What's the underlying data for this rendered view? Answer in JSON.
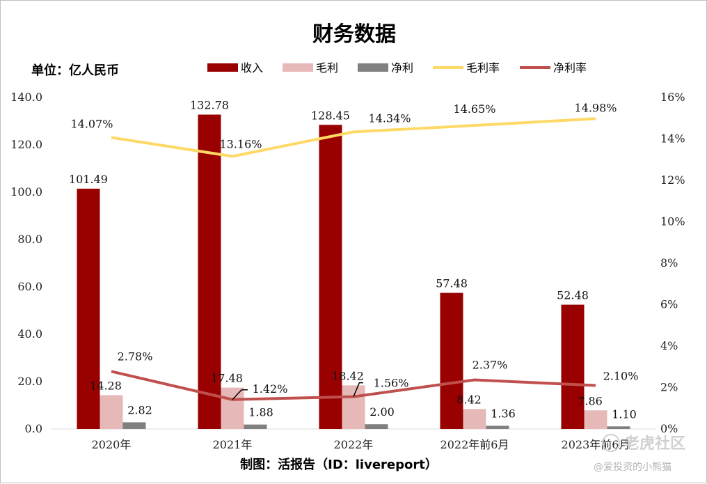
{
  "unit_label": "单位：亿人民币",
  "credit": "制图：活报告（ID：livereport）",
  "watermark": {
    "brand": "老虎社区",
    "user": "@爱投资的小熊猫"
  },
  "chart_data": {
    "type": "bar",
    "title": "财务数据",
    "categories": [
      "2020年",
      "2021年",
      "2022年",
      "2022年前6月",
      "2023年前6月"
    ],
    "y_left": {
      "range": [
        0,
        140
      ],
      "ticks": [
        "0.0",
        "20.0",
        "40.0",
        "60.0",
        "80.0",
        "100.0",
        "120.0",
        "140.0"
      ]
    },
    "y_right": {
      "range": [
        0,
        16
      ],
      "ticks": [
        "0%",
        "2%",
        "4%",
        "6%",
        "8%",
        "10%",
        "12%",
        "14%",
        "16%"
      ]
    },
    "series": [
      {
        "name": "收入",
        "kind": "bar",
        "axis": "left",
        "color": "#990000",
        "values": [
          101.49,
          132.78,
          128.45,
          57.48,
          52.48
        ],
        "labels": [
          "101.49",
          "132.78",
          "128.45",
          "57.48",
          "52.48"
        ]
      },
      {
        "name": "毛利",
        "kind": "bar",
        "axis": "left",
        "color": "#e6b8b7",
        "values": [
          14.28,
          17.48,
          18.42,
          8.42,
          7.86
        ],
        "labels": [
          "14.28",
          "17.48",
          "18.42",
          "8.42",
          "7.86"
        ]
      },
      {
        "name": "净利",
        "kind": "bar",
        "axis": "left",
        "color": "#808080",
        "values": [
          2.82,
          1.88,
          2.0,
          1.36,
          1.1
        ],
        "labels": [
          "2.82",
          "1.88",
          "2.00",
          "1.36",
          "1.10"
        ]
      },
      {
        "name": "毛利率",
        "kind": "line",
        "axis": "right",
        "color": "#ffd966",
        "values": [
          14.07,
          13.16,
          14.34,
          14.65,
          14.98
        ],
        "labels": [
          "14.07%",
          "13.16%",
          "14.34%",
          "14.65%",
          "14.98%"
        ]
      },
      {
        "name": "净利率",
        "kind": "line",
        "axis": "right",
        "color": "#c0504d",
        "values": [
          2.78,
          1.42,
          1.56,
          2.37,
          2.1
        ],
        "labels": [
          "2.78%",
          "1.42%",
          "1.56%",
          "2.37%",
          "2.10%"
        ]
      }
    ],
    "legend_position": "top",
    "grid": false
  }
}
